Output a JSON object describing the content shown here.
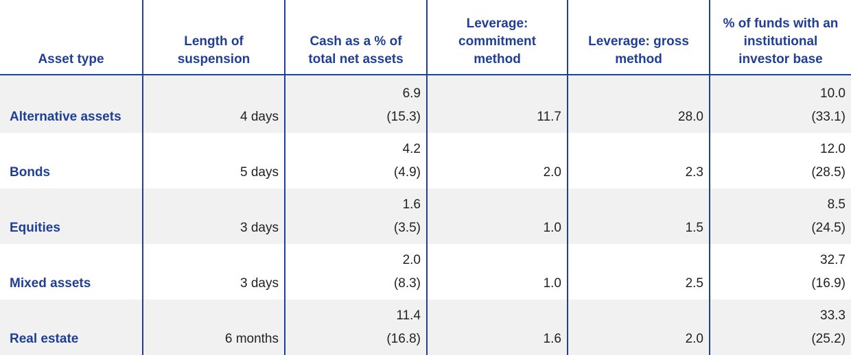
{
  "headers": [
    "Asset type",
    "Length of suspension",
    "Cash as a % of total net assets",
    "Leverage: commitment method",
    "Leverage: gross method",
    "% of funds with an institutional investor base"
  ],
  "header_lines": [
    [
      "Asset type"
    ],
    [
      "Length of",
      "suspension"
    ],
    [
      "Cash as a % of",
      "total net assets"
    ],
    [
      "Leverage:",
      "commitment",
      "method"
    ],
    [
      "Leverage: gross",
      "method"
    ],
    [
      "% of funds with an",
      "institutional",
      "investor base"
    ]
  ],
  "rows": [
    {
      "asset": "Alternative assets",
      "suspension": "4 days",
      "cash": "6.9",
      "cash_sub": "(15.3)",
      "commitment": "11.7",
      "gross": "28.0",
      "inst": "10.0",
      "inst_sub": "(33.1)"
    },
    {
      "asset": "Bonds",
      "suspension": "5 days",
      "cash": "4.2",
      "cash_sub": "(4.9)",
      "commitment": "2.0",
      "gross": "2.3",
      "inst": "12.0",
      "inst_sub": "(28.5)"
    },
    {
      "asset": "Equities",
      "suspension": "3 days",
      "cash": "1.6",
      "cash_sub": "(3.5)",
      "commitment": "1.0",
      "gross": "1.5",
      "inst": "8.5",
      "inst_sub": "(24.5)"
    },
    {
      "asset": "Mixed assets",
      "suspension": "3 days",
      "cash": "2.0",
      "cash_sub": "(8.3)",
      "commitment": "1.0",
      "gross": "2.5",
      "inst": "32.7",
      "inst_sub": "(16.9)"
    },
    {
      "asset": "Real estate",
      "suspension": "6 months",
      "cash": "11.4",
      "cash_sub": "(16.8)",
      "commitment": "1.6",
      "gross": "2.0",
      "inst": "33.3",
      "inst_sub": "(25.2)"
    }
  ],
  "colors": {
    "header_text": "#1f3f96",
    "row_shade": "#f1f1f1",
    "divider": "#1f3f96"
  }
}
